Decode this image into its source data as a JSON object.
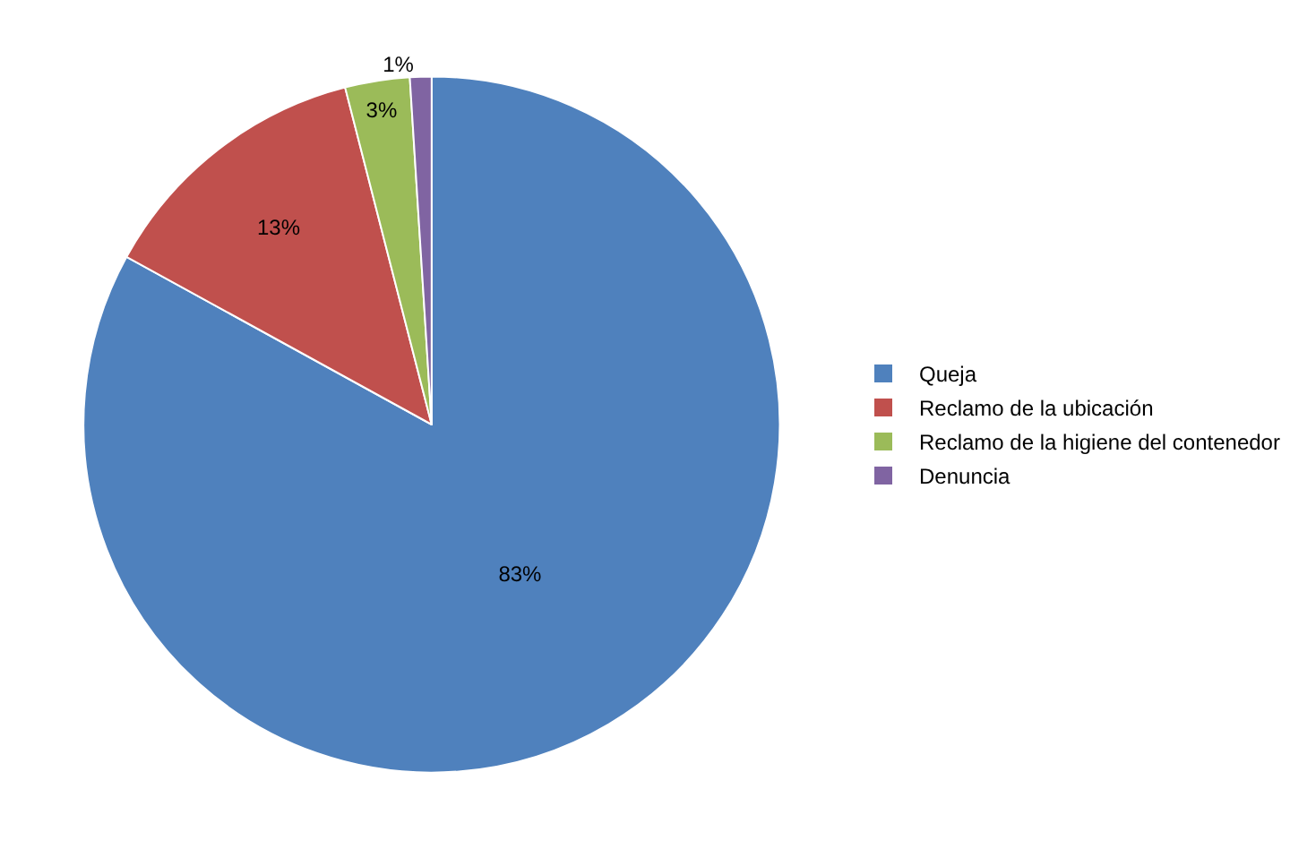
{
  "chart_data": {
    "type": "pie",
    "categories": [
      "Queja",
      "Reclamo de la ubicación",
      "Reclamo de la higiene del contenedor",
      "Denuncia"
    ],
    "values": [
      83,
      13,
      3,
      1
    ],
    "colors": [
      "#4f81bd",
      "#c0504d",
      "#9bbb59",
      "#8064a2"
    ],
    "value_labels": [
      "83%",
      "13%",
      "3%",
      "1%"
    ],
    "legend": "right"
  }
}
